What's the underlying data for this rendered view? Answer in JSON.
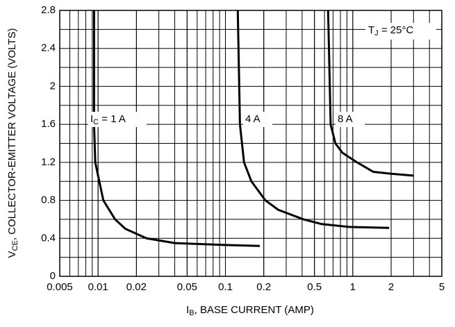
{
  "chart_data": {
    "type": "line",
    "xlabel": [
      "I",
      "B",
      ", BASE CURRENT (AMP)"
    ],
    "ylabel": [
      "V",
      "CE",
      ", COLLECTOR-EMITTER VOLTAGE (VOLTS)"
    ],
    "annotation": [
      "T",
      "J",
      " = 25°C"
    ],
    "log_x": true,
    "grid": true,
    "color": "#000000",
    "xlim": [
      0.005,
      5
    ],
    "xticks": [
      0.005,
      0.01,
      0.02,
      0.05,
      0.1,
      0.2,
      0.5,
      1,
      2,
      5
    ],
    "ylim": [
      0,
      2.8
    ],
    "yticks": [
      0,
      0.4,
      0.8,
      1.2,
      1.6,
      2,
      2.4,
      2.8
    ],
    "series": [
      {
        "label": [
          "I",
          "C",
          " = 1 A"
        ],
        "x": [
          0.0093,
          0.0093,
          0.0095,
          0.011,
          0.0136,
          0.0164,
          0.024,
          0.04,
          0.1,
          0.186
        ],
        "values": [
          2.8,
          1.6,
          1.2,
          0.8,
          0.6,
          0.5,
          0.4,
          0.35,
          0.33,
          0.32
        ]
      },
      {
        "label": [
          "4 A"
        ],
        "x": [
          0.125,
          0.13,
          0.14,
          0.16,
          0.206,
          0.26,
          0.41,
          0.57,
          0.94,
          1.93
        ],
        "values": [
          2.8,
          1.6,
          1.2,
          1.0,
          0.8,
          0.7,
          0.6,
          0.55,
          0.52,
          0.51
        ]
      },
      {
        "label": [
          "8 A"
        ],
        "x": [
          0.64,
          0.67,
          0.73,
          0.83,
          1.08,
          1.45,
          2.0,
          3.0
        ],
        "values": [
          2.8,
          1.6,
          1.4,
          1.3,
          1.2,
          1.1,
          1.08,
          1.06
        ]
      }
    ]
  }
}
